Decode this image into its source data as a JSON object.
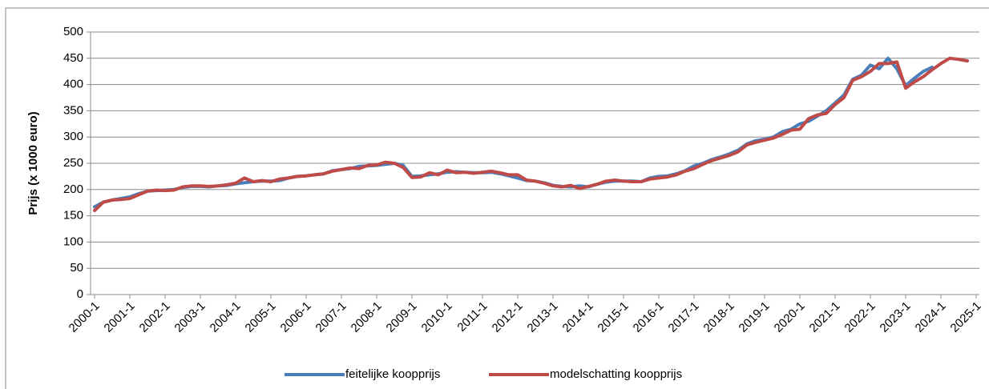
{
  "chart_data": {
    "type": "line",
    "y_label": "Prijs (x 1000 euro)",
    "categories": [
      "2000-1",
      null,
      null,
      null,
      "2001-1",
      null,
      null,
      null,
      "2002-1",
      null,
      null,
      null,
      "2003-1",
      null,
      null,
      null,
      "2004-1",
      null,
      null,
      null,
      "2005-1",
      null,
      null,
      null,
      "2006-1",
      null,
      null,
      null,
      "2007-1",
      null,
      null,
      null,
      "2008-1",
      null,
      null,
      null,
      "2009-1",
      null,
      null,
      null,
      "2010-1",
      null,
      null,
      null,
      "2011-1",
      null,
      null,
      null,
      "2012-1",
      null,
      null,
      null,
      "2013-1",
      null,
      null,
      null,
      "2014-1",
      null,
      null,
      null,
      "2015-1",
      null,
      null,
      null,
      "2016-1",
      null,
      null,
      null,
      "2017-1",
      null,
      null,
      null,
      "2018-1",
      null,
      null,
      null,
      "2019-1",
      null,
      null,
      null,
      "2020-1",
      null,
      null,
      null,
      "2021-1",
      null,
      null,
      null,
      "2022-1",
      null,
      null,
      null,
      "2023-1",
      null,
      null,
      null,
      "2024-1",
      null,
      null,
      null,
      "2025-1"
    ],
    "series": [
      {
        "name": "feitelijke koopprijs",
        "color": "#4a7ebb",
        "values": [
          167,
          176,
          180,
          183,
          186,
          192,
          197,
          198,
          199,
          200,
          204,
          206,
          206,
          205,
          207,
          208,
          211,
          213,
          215,
          216,
          216,
          217,
          222,
          225,
          226,
          228,
          230,
          236,
          238,
          240,
          244,
          245,
          246,
          248,
          250,
          246,
          225,
          226,
          228,
          230,
          233,
          234,
          233,
          232,
          232,
          233,
          230,
          226,
          222,
          217,
          216,
          213,
          208,
          206,
          205,
          207,
          205,
          210,
          214,
          216,
          216,
          216,
          215,
          222,
          225,
          226,
          230,
          236,
          245,
          250,
          257,
          262,
          268,
          275,
          287,
          293,
          296,
          300,
          310,
          315,
          325,
          330,
          340,
          350,
          365,
          380,
          410,
          418,
          437,
          430,
          450,
          430,
          398,
          412,
          425,
          433,
          null,
          null,
          null,
          null,
          null
        ]
      },
      {
        "name": "modelschatting koopprijs",
        "color": "#be4b48",
        "values": [
          160,
          176,
          180,
          181,
          183,
          190,
          197,
          199,
          198,
          199,
          205,
          207,
          207,
          206,
          207,
          209,
          212,
          222,
          215,
          217,
          215,
          220,
          222,
          225,
          226,
          228,
          230,
          235,
          238,
          241,
          240,
          246,
          247,
          252,
          250,
          242,
          223,
          224,
          232,
          228,
          237,
          232,
          233,
          231,
          233,
          235,
          232,
          228,
          228,
          218,
          216,
          212,
          207,
          205,
          208,
          202,
          206,
          210,
          216,
          218,
          216,
          215,
          215,
          220,
          222,
          224,
          228,
          235,
          240,
          248,
          255,
          260,
          265,
          272,
          285,
          290,
          294,
          298,
          305,
          313,
          315,
          335,
          342,
          345,
          362,
          375,
          408,
          415,
          425,
          440,
          440,
          443,
          393,
          405,
          415,
          428,
          440,
          450,
          448,
          445,
          null
        ]
      }
    ],
    "ylim": [
      0,
      500
    ],
    "yticks": [
      0,
      50,
      100,
      150,
      200,
      250,
      300,
      350,
      400,
      450,
      500
    ],
    "grid": true,
    "legend": "bottom"
  }
}
